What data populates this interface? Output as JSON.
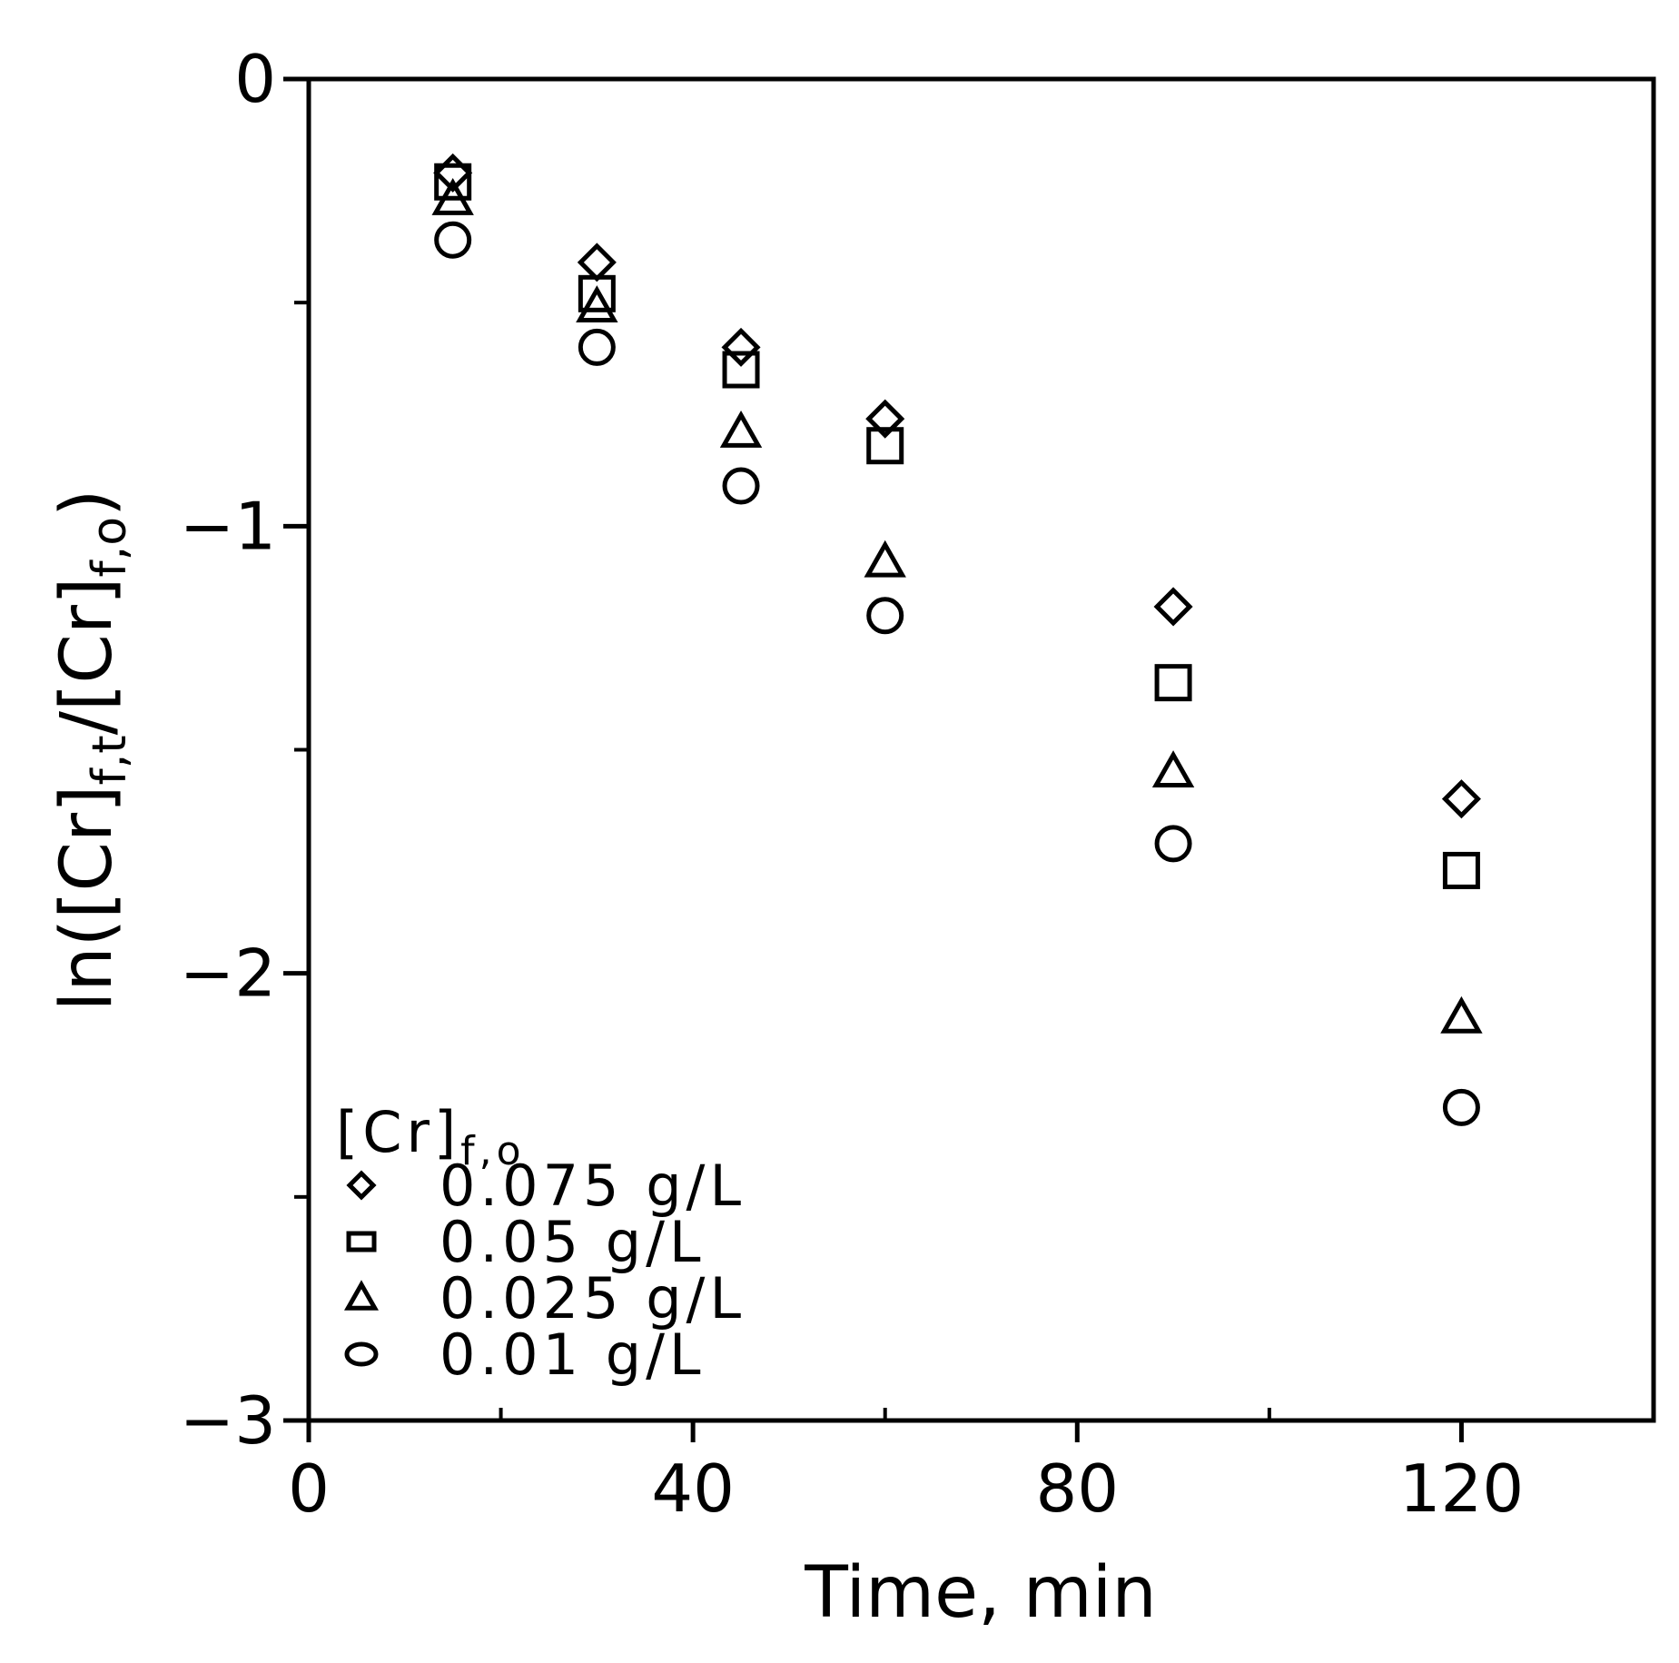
{
  "chart_data": {
    "type": "scatter",
    "xlabel": "Time, min",
    "ylabel": {
      "main": "ln([Cr]",
      "sub1": "f,t",
      "mid": "/[Cr]",
      "sub2": "f,o",
      "end": ")"
    },
    "xlim": [
      0,
      140
    ],
    "ylim": [
      -3,
      0
    ],
    "x_major_ticks": [
      0,
      40,
      80,
      120
    ],
    "x_major_tick_labels": [
      "0",
      "40",
      "80",
      "120"
    ],
    "x_minor_ticks": [
      20,
      60,
      100
    ],
    "y_major_ticks": [
      0,
      -1,
      -2,
      -3
    ],
    "y_major_tick_labels": [
      "0",
      "−1",
      "−2",
      "−3"
    ],
    "y_minor_ticks": [
      -0.5,
      -1.5,
      -2.5
    ],
    "grid": false,
    "legend": {
      "placement": "lower-left",
      "title_main": "[Cr]",
      "title_sub": "f,o"
    },
    "x": [
      15,
      30,
      45,
      60,
      90,
      120
    ],
    "series": [
      {
        "name": "0.075 g/L",
        "marker": "diamond",
        "values": [
          -0.21,
          -0.41,
          -0.6,
          -0.76,
          -1.18,
          -1.61
        ]
      },
      {
        "name": "0.05 g/L",
        "marker": "square",
        "values": [
          -0.23,
          -0.48,
          -0.65,
          -0.82,
          -1.35,
          -1.77
        ]
      },
      {
        "name": "0.025 g/L",
        "marker": "triangle",
        "values": [
          -0.27,
          -0.51,
          -0.79,
          -1.08,
          -1.55,
          -2.1
        ]
      },
      {
        "name": "0.01 g/L",
        "marker": "circle",
        "values": [
          -0.36,
          -0.6,
          -0.91,
          -1.2,
          -1.71,
          -2.3
        ]
      }
    ]
  }
}
